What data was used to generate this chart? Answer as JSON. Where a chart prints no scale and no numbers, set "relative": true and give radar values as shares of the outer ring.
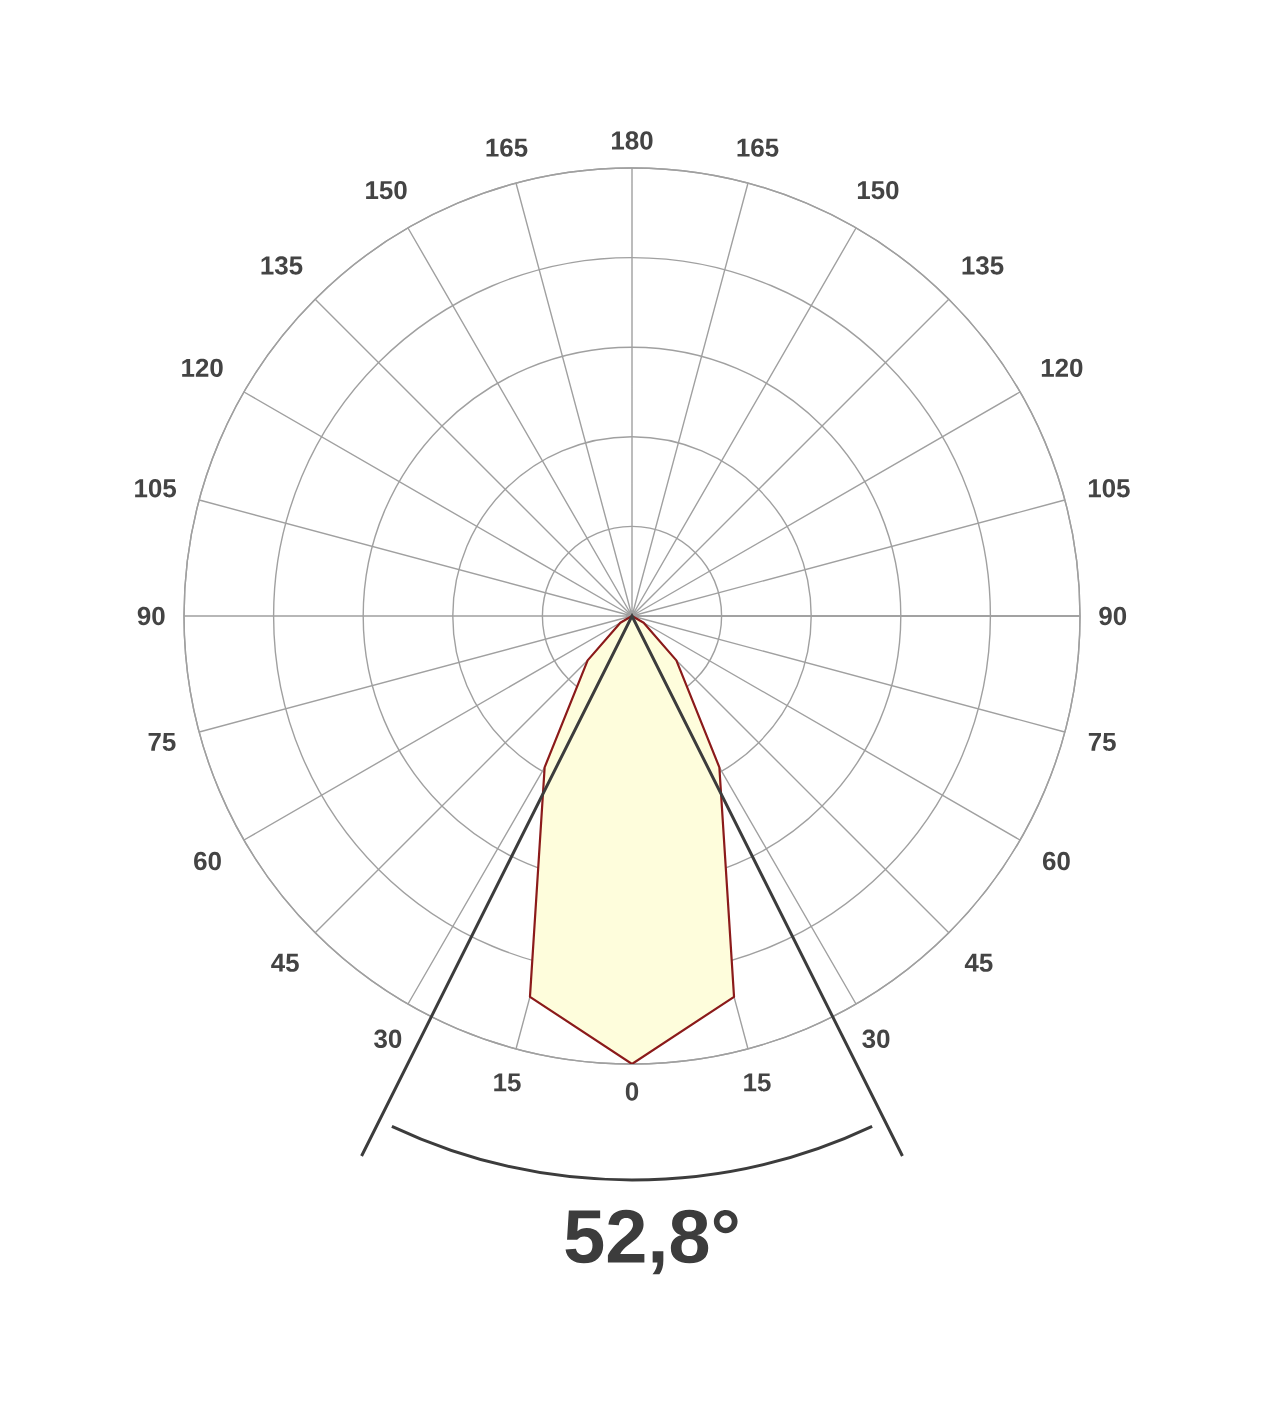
{
  "chart_data": {
    "type": "radar",
    "relative": true,
    "grid": true,
    "categories": [
      "180",
      "165",
      "150",
      "135",
      "120",
      "105",
      "90",
      "75",
      "60",
      "45",
      "30",
      "15",
      "0",
      "15",
      "30",
      "45",
      "60",
      "75",
      "90",
      "105",
      "120",
      "135",
      "150",
      "165"
    ],
    "series": [
      {
        "color": "#8b1a1a",
        "values": [
          0,
          0,
          0,
          0,
          0,
          0,
          0,
          0,
          0.03,
          0.14,
          0.39,
          0.88,
          1.0,
          0.88,
          0.39,
          0.14,
          0.03,
          0,
          0,
          0,
          0,
          0,
          0,
          0
        ]
      }
    ],
    "annotations": [
      "52,8°"
    ]
  }
}
